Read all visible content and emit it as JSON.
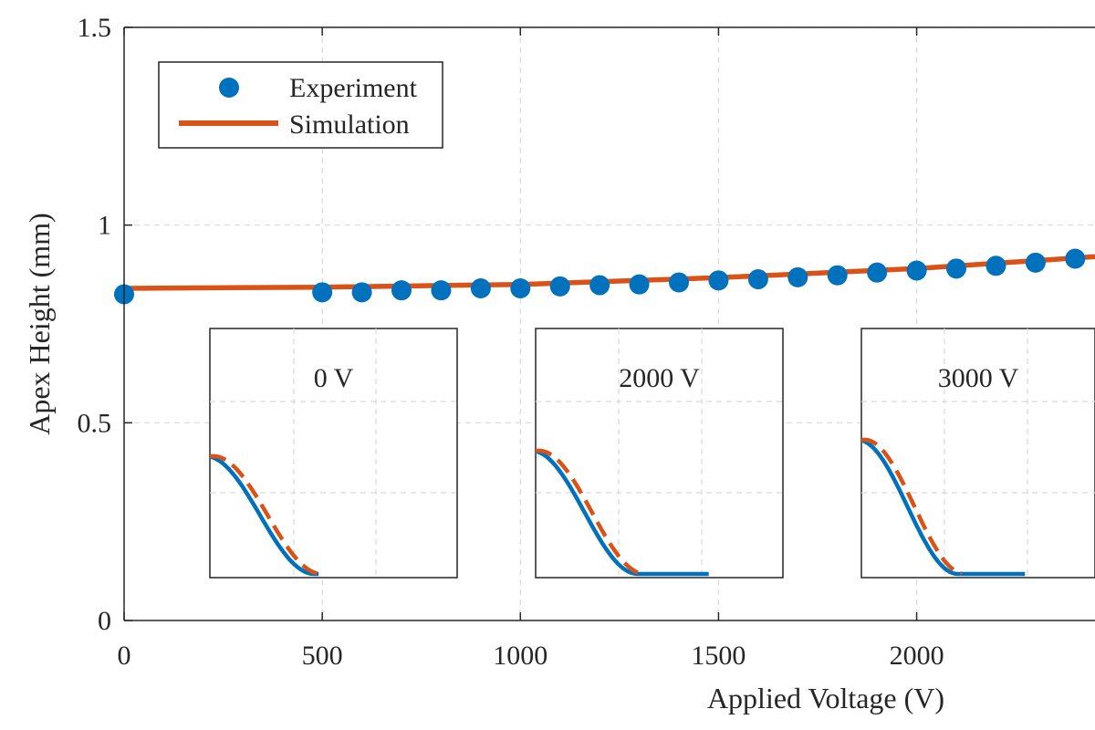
{
  "chart_data": {
    "type": "scatter",
    "xlabel": "Applied Voltage (V)",
    "ylabel": "Apex Height (mm)",
    "xlim": [
      0,
      2450
    ],
    "ylim": [
      0,
      1.5
    ],
    "xticks": [
      0,
      500,
      1000,
      1500,
      2000
    ],
    "yticks": [
      0,
      0.5,
      1,
      1.5
    ],
    "xtick_labels": [
      "0",
      "500",
      "1000",
      "1500",
      "2000"
    ],
    "ytick_labels": [
      "0",
      "0.5",
      "1",
      "1.5"
    ],
    "grid": true,
    "legend": {
      "position": "top-left",
      "entries": [
        "Experiment",
        "Simulation"
      ]
    },
    "series": [
      {
        "name": "Experiment",
        "style": "markers",
        "color": "#0072BD",
        "x": [
          0,
          500,
          600,
          700,
          800,
          900,
          1000,
          1100,
          1200,
          1300,
          1400,
          1500,
          1600,
          1700,
          1800,
          1900,
          2000,
          2100,
          2200,
          2300,
          2400
        ],
        "y": [
          0.825,
          0.83,
          0.83,
          0.835,
          0.835,
          0.84,
          0.84,
          0.845,
          0.848,
          0.85,
          0.855,
          0.86,
          0.863,
          0.868,
          0.873,
          0.88,
          0.885,
          0.89,
          0.897,
          0.905,
          0.915
        ]
      },
      {
        "name": "Simulation",
        "style": "line",
        "color": "#D95319",
        "x": [
          0,
          500,
          1000,
          1500,
          2000,
          2450
        ],
        "y": [
          0.84,
          0.843,
          0.85,
          0.867,
          0.89,
          0.92
        ]
      }
    ],
    "insets": [
      {
        "title": "0 V",
        "experiment_color": "#0072BD",
        "simulation_color": "#D95319",
        "start": 0.74,
        "steep": 0.0,
        "tail": false
      },
      {
        "title": "2000 V",
        "experiment_color": "#0072BD",
        "simulation_color": "#D95319",
        "start": 0.78,
        "steep": 0.0,
        "tail": true
      },
      {
        "title": "3000 V",
        "experiment_color": "#0072BD",
        "simulation_color": "#D95319",
        "start": 0.86,
        "steep": 0.0,
        "tail": true
      }
    ]
  }
}
